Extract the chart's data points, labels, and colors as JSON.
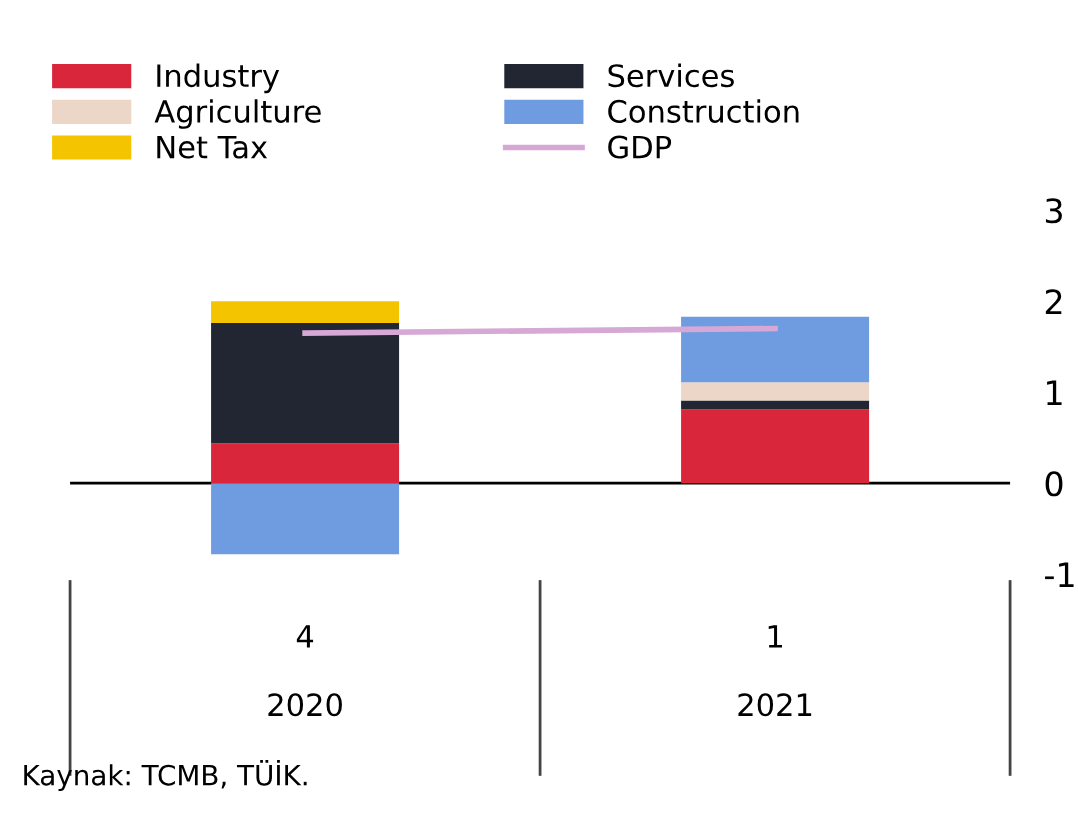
{
  "chart_data": {
    "type": "bar",
    "stacked": true,
    "categories": [
      "4\n\n2020",
      "1\n\n2021"
    ],
    "series": [
      {
        "name": "Industry",
        "color": "#d9263b",
        "values": [
          0.44,
          0.81
        ]
      },
      {
        "name": "Services",
        "color": "#222633",
        "values": [
          1.32,
          0.1
        ]
      },
      {
        "name": "Agriculture",
        "color": "#ecd6c8",
        "values": [
          0,
          0.2
        ]
      },
      {
        "name": "Construction",
        "color": "#6f9ce0",
        "values": [
          -0.78,
          0.72
        ]
      },
      {
        "name": "Net Tax",
        "color": "#f5c400",
        "values": [
          0.24,
          0
        ]
      },
      {
        "name": "GDP",
        "type": "line",
        "color": "#d6a8d6",
        "values": [
          1.65,
          1.7
        ]
      }
    ],
    "ylim": [
      -1,
      3
    ],
    "yticks": [
      -1,
      0,
      1,
      2,
      3
    ],
    "legend": "top",
    "annotations": [
      "Kaynak: TCMB, TÜİK."
    ]
  }
}
